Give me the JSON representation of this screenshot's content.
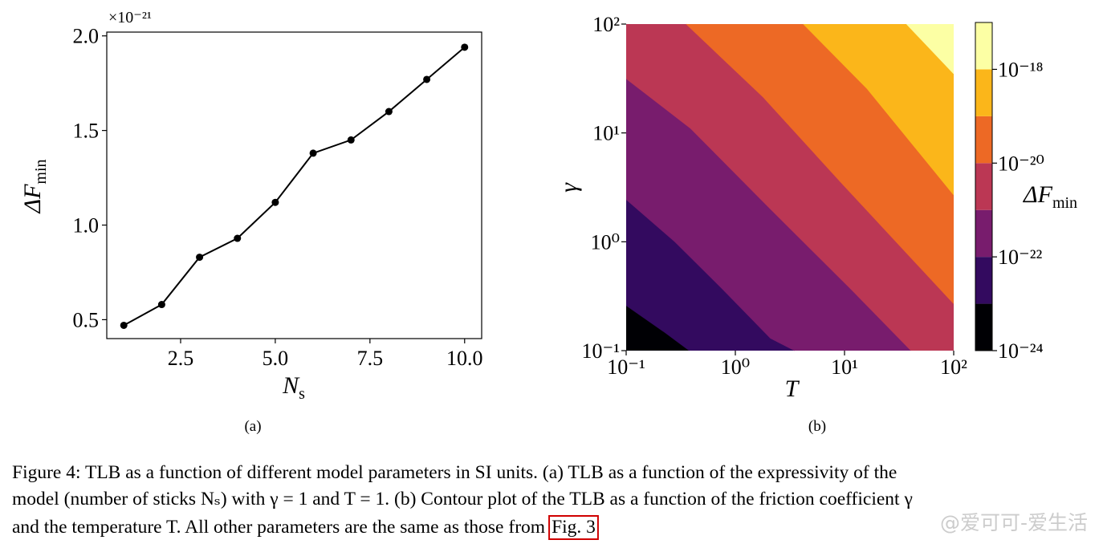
{
  "chart_data": [
    {
      "type": "line",
      "xlabel": [
        "N",
        "s"
      ],
      "ylabel": [
        "ΔF",
        "min"
      ],
      "offset_label": "×10⁻²¹",
      "caption": "(a)",
      "x": [
        1,
        2,
        3,
        4,
        5,
        6,
        7,
        8,
        9,
        10
      ],
      "values": [
        0.47,
        0.58,
        0.83,
        0.93,
        1.12,
        1.38,
        1.45,
        1.6,
        1.77,
        1.94
      ],
      "color": "#000000",
      "xlim": [
        0.55,
        10.45
      ],
      "xticks": [
        2.5,
        {
          "value": 5,
          "label": "5.0"
        },
        7.5,
        {
          "value": 10,
          "label": "10.0"
        }
      ],
      "ylim": [
        0.4,
        2.02
      ],
      "yticks": [
        0.5,
        {
          "value": 1,
          "label": "1.0"
        },
        1.5,
        {
          "value": 2,
          "label": "2.0"
        }
      ]
    },
    {
      "type": "contour",
      "xlabel": "T",
      "ylabel": "γ",
      "caption": "(b)",
      "xscale": "log",
      "yscale": "log",
      "xlim": [
        0.1,
        100
      ],
      "ylim": [
        0.1,
        100
      ],
      "xticks": [
        {
          "value": 0.1,
          "label": "10⁻¹"
        },
        {
          "value": 1,
          "label": "10⁰"
        },
        {
          "value": 10,
          "label": "10¹"
        },
        {
          "value": 100,
          "label": "10²"
        }
      ],
      "yticks": [
        {
          "value": 0.1,
          "label": "10⁻¹"
        },
        {
          "value": 1,
          "label": "10⁰"
        },
        {
          "value": 10,
          "label": "10¹"
        },
        {
          "value": 100,
          "label": "10²"
        }
      ],
      "levels": [
        1e-24,
        1e-23,
        1e-22,
        1e-21,
        1e-20,
        1e-19,
        1e-18,
        1e-17
      ],
      "colors": [
        "#000004",
        "#330a5f",
        "#781c6d",
        "#bb3754",
        "#ed6925",
        "#fbb61a",
        "#fcffa4"
      ],
      "contours": [
        {
          "x": [
            0.1,
            0.22,
            0.38
          ],
          "y": [
            0.26,
            0.15,
            0.1
          ]
        },
        {
          "x": [
            0.1,
            0.28,
            0.76,
            2.1,
            3.5
          ],
          "y": [
            2.45,
            1.0,
            0.37,
            0.13,
            0.1
          ]
        },
        {
          "x": [
            0.1,
            0.39,
            2.1,
            11.4,
            40.7
          ],
          "y": [
            31.6,
            11,
            2.0,
            0.37,
            0.1
          ]
        },
        {
          "x": [
            0.355,
            1.78,
            9.7,
            100
          ],
          "y": [
            100,
            21.6,
            3.35,
            0.27
          ]
        },
        {
          "x": [
            4.2,
            16,
            100
          ],
          "y": [
            100,
            25.7,
            2.7
          ]
        },
        {
          "x": [
            37,
            100
          ],
          "y": [
            100,
            35
          ]
        }
      ],
      "colorbar": {
        "label": [
          "ΔF",
          "min"
        ],
        "ticks": [
          {
            "value": 1e-24,
            "label": "10⁻²⁴"
          },
          {
            "value": 1e-22,
            "label": "10⁻²²"
          },
          {
            "value": 1e-20,
            "label": "10⁻²⁰"
          },
          {
            "value": 1e-18,
            "label": "10⁻¹⁸"
          }
        ]
      }
    }
  ],
  "caption": {
    "lines": [
      "Figure 4: TLB as a function of different model parameters in SI units. (a) TLB as a function of the expressivity of the",
      "model (number of sticks Nₛ) with γ = 1 and T = 1. (b) Contour plot of the TLB as a function of the friction coefficient γ",
      "and the temperature T. All other parameters are the same as those from"
    ],
    "link": "Fig. 3"
  },
  "watermark": "@爱可可-爱生活"
}
